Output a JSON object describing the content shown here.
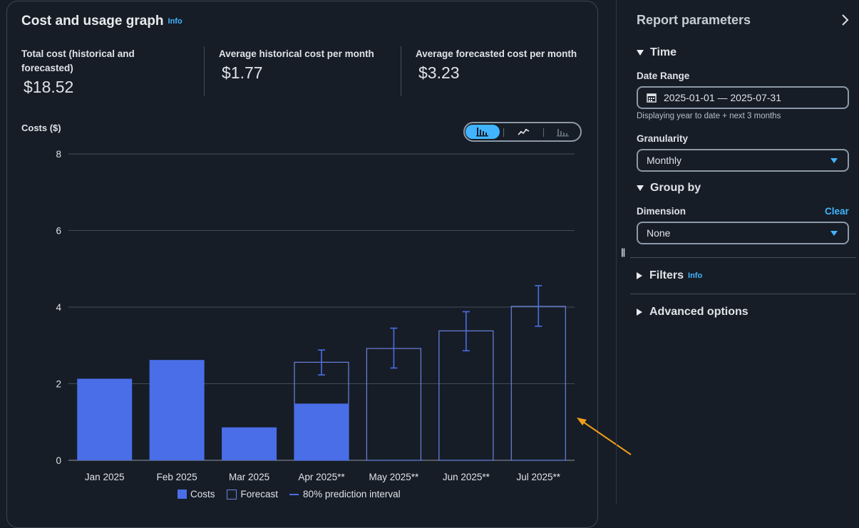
{
  "graph": {
    "title": "Cost and usage graph",
    "info": "Info",
    "stats": [
      {
        "label_line1": "Total cost (historical and",
        "label_line2": "forecasted)",
        "value": "$18.52"
      },
      {
        "label_line1": "Average historical cost per month",
        "label_line2": "",
        "value": "$1.77"
      },
      {
        "label_line1": "Average forecasted cost per month",
        "label_line2": "",
        "value": "$3.23"
      }
    ],
    "y_axis_label": "Costs ($)",
    "chart_type_options": [
      "bar-chart-icon",
      "line-chart-icon",
      "stacked-bar-chart-icon"
    ],
    "chart_type_selected": "bar-chart-icon",
    "legend": {
      "costs": "Costs",
      "forecast": "Forecast",
      "interval": "80% prediction interval"
    }
  },
  "chart_data": {
    "type": "bar",
    "categories": [
      "Jan 2025",
      "Feb 2025",
      "Mar 2025",
      "Apr 2025**",
      "May 2025**",
      "Jun 2025**",
      "Jul 2025**"
    ],
    "series": [
      {
        "name": "Costs",
        "values": [
          2.13,
          2.62,
          0.86,
          1.48,
          0,
          0,
          0
        ],
        "color": "#4a6ee8"
      },
      {
        "name": "Forecast",
        "values": [
          null,
          null,
          null,
          2.56,
          2.92,
          3.38,
          4.02
        ],
        "color": "#6b82e0"
      }
    ],
    "prediction_interval": {
      "name": "80% prediction interval",
      "low": [
        null,
        null,
        null,
        2.23,
        2.41,
        2.86,
        3.5
      ],
      "high": [
        null,
        null,
        null,
        2.88,
        3.45,
        3.88,
        4.56
      ]
    },
    "ylabel": "Costs ($)",
    "ylim": [
      0,
      8
    ],
    "yticks": [
      0,
      2,
      4,
      6,
      8
    ],
    "grid": true,
    "legend_position": "bottom"
  },
  "params": {
    "title": "Report parameters",
    "time_section": "Time",
    "date_range_label": "Date Range",
    "date_range_value": "2025-01-01 — 2025-07-31",
    "date_range_hint": "Displaying year to date + next 3 months",
    "granularity_label": "Granularity",
    "granularity_value": "Monthly",
    "group_by_section": "Group by",
    "dimension_label": "Dimension",
    "clear": "Clear",
    "dimension_value": "None",
    "filters_section": "Filters",
    "filters_info": "Info",
    "advanced_section": "Advanced options"
  },
  "colors": {
    "background": "#161d26",
    "accent": "#42b4ff",
    "bar": "#4a6ee8",
    "annotation_arrow": "#f29d1b"
  }
}
